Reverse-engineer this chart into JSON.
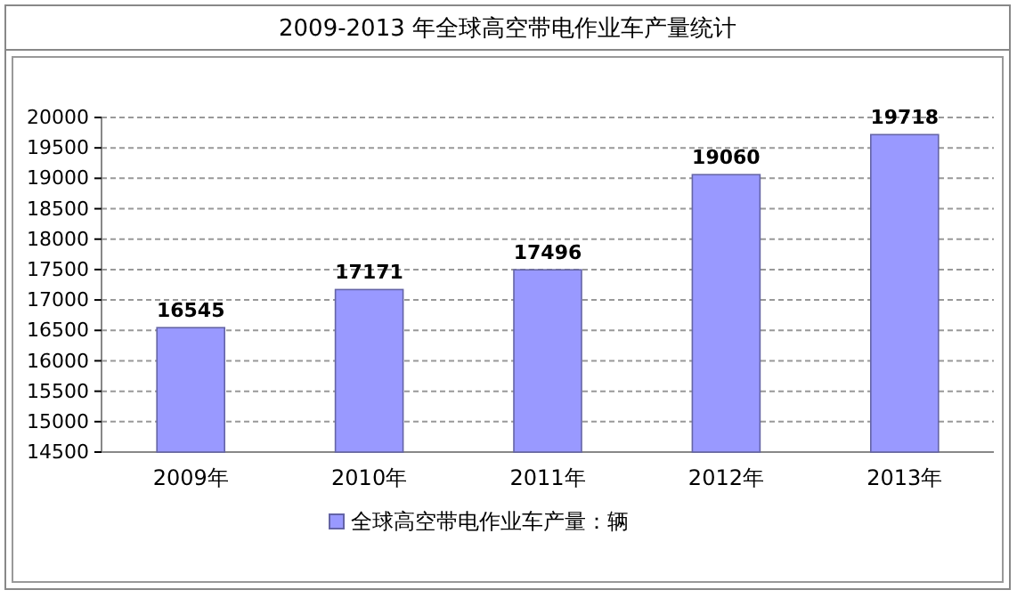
{
  "chart_data": {
    "type": "bar",
    "title": "2009-2013 年全球高空带电作业车产量统计",
    "categories": [
      "2009年",
      "2010年",
      "2011年",
      "2012年",
      "2013年"
    ],
    "series": [
      {
        "name": "全球高空带电作业车产量：辆",
        "color": "#9999ff",
        "values": [
          16545,
          17171,
          17496,
          19060,
          19718
        ]
      }
    ],
    "ylim": [
      14500,
      20000
    ],
    "yticks": [
      14500,
      15000,
      15500,
      16000,
      16500,
      17000,
      17500,
      18000,
      18500,
      19000,
      19500,
      20000
    ],
    "grid": "y",
    "legend": "bottom",
    "data_labels": true
  }
}
